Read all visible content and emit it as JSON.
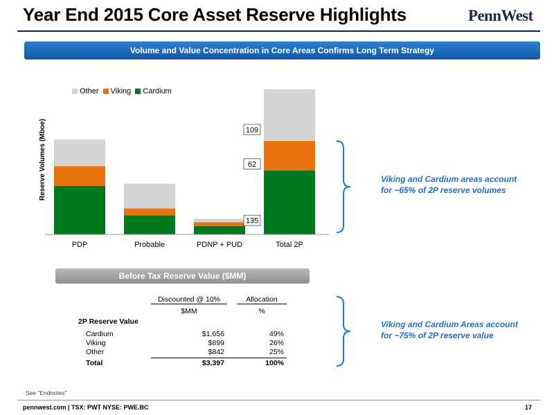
{
  "header": {
    "title": "Year End 2015 Core Asset Reserve Highlights",
    "logo": "PennWest"
  },
  "banner": "Volume and Value Concentration in Core Areas Confirms Long Term Strategy",
  "chart_data": {
    "type": "bar",
    "stacked": true,
    "categories": [
      "PDP",
      "Probable",
      "PDNP + PUD",
      "Total 2P"
    ],
    "series": [
      {
        "name": "Cardium",
        "color": "#007a1f",
        "values": [
          102,
          40,
          18,
          135
        ]
      },
      {
        "name": "Viking",
        "color": "#e8730c",
        "values": [
          42,
          15,
          8,
          62
        ]
      },
      {
        "name": "Other",
        "color": "#d4d4d4",
        "values": [
          56,
          52,
          7,
          109
        ]
      }
    ],
    "data_labels": {
      "Total 2P": [
        "135",
        "62",
        "109"
      ]
    },
    "legend_order": [
      "Other",
      "Viking",
      "Cardium"
    ],
    "legend_position": "top-left",
    "ylabel": "Reserve Volumes (Mboe)",
    "ylim": [
      0,
      306
    ],
    "grid": false
  },
  "callouts": {
    "volumes": "Viking and Cardium areas account for ~65% of 2P reserve volumes",
    "value": "Viking and Cardium Areas account for ~75% of 2P reserve value"
  },
  "table": {
    "banner": "Before Tax Reserve Value ($MM)",
    "col1_header": "Discounted @ 10%",
    "col2_header": "Allocation",
    "col1_unit": "$MM",
    "col2_unit": "%",
    "section": "2P Reserve Value",
    "rows": [
      {
        "label": "Cardium",
        "value": "$1,656",
        "pct": "49%"
      },
      {
        "label": "Viking",
        "value": "$899",
        "pct": "26%"
      },
      {
        "label": "Other",
        "value": "$842",
        "pct": "25%"
      }
    ],
    "total": {
      "label": "Total",
      "value": "$3,397",
      "pct": "100%"
    }
  },
  "endnote": "See \"Endnotes\"",
  "footer": "pennwest.com | TSX: PWT NYSE: PWE.BC",
  "page_number": "17"
}
